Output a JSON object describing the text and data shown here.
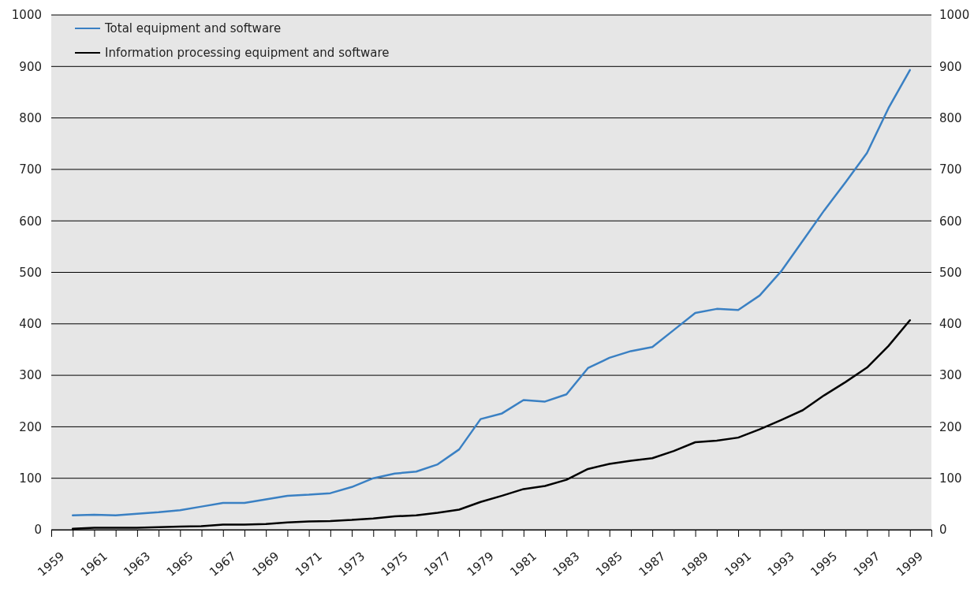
{
  "chart_data": {
    "type": "line",
    "x": [
      1960,
      1961,
      1962,
      1963,
      1964,
      1965,
      1966,
      1967,
      1968,
      1969,
      1970,
      1971,
      1972,
      1973,
      1974,
      1975,
      1976,
      1977,
      1978,
      1979,
      1980,
      1981,
      1982,
      1983,
      1984,
      1985,
      1986,
      1987,
      1988,
      1989,
      1990,
      1991,
      1992,
      1993,
      1994,
      1995,
      1996,
      1997,
      1998,
      1999
    ],
    "series": [
      {
        "name": "Total equipment and software",
        "color": "#3a80c3",
        "values": [
          28,
          29,
          28,
          31,
          34,
          38,
          45,
          52,
          52,
          59,
          66,
          68,
          71,
          83,
          100,
          109,
          113,
          127,
          156,
          215,
          226,
          252,
          249,
          263,
          314,
          334,
          347,
          355,
          388,
          421,
          429,
          427,
          455,
          502,
          561,
          620,
          675,
          732,
          819,
          893
        ]
      },
      {
        "name": "Information processing equipment and software",
        "color": "#000000",
        "values": [
          2,
          4,
          4,
          4,
          5,
          6,
          7,
          10,
          10,
          11,
          14,
          16,
          17,
          19,
          22,
          26,
          28,
          33,
          39,
          54,
          66,
          79,
          85,
          97,
          118,
          128,
          134,
          139,
          153,
          170,
          173,
          179,
          195,
          213,
          232,
          261,
          287,
          315,
          357,
          407
        ]
      }
    ],
    "xlim": [
      1959,
      2000
    ],
    "xticks": [
      1959,
      {
        "value": 1960,
        "label": null
      },
      1961,
      {
        "value": 1962,
        "label": null
      },
      1963,
      {
        "value": 1964,
        "label": null
      },
      1965,
      {
        "value": 1966,
        "label": null
      },
      1967,
      {
        "value": 1968,
        "label": null
      },
      1969,
      {
        "value": 1970,
        "label": null
      },
      1971,
      {
        "value": 1972,
        "label": null
      },
      1973,
      {
        "value": 1974,
        "label": null
      },
      1975,
      {
        "value": 1976,
        "label": null
      },
      1977,
      {
        "value": 1978,
        "label": null
      },
      1979,
      {
        "value": 1980,
        "label": null
      },
      1981,
      {
        "value": 1982,
        "label": null
      },
      1983,
      {
        "value": 1984,
        "label": null
      },
      1985,
      {
        "value": 1986,
        "label": null
      },
      1987,
      {
        "value": 1988,
        "label": null
      },
      1989,
      {
        "value": 1990,
        "label": null
      },
      1991,
      {
        "value": 1992,
        "label": null
      },
      1993,
      {
        "value": 1994,
        "label": null
      },
      1995,
      {
        "value": 1996,
        "label": null
      },
      1997,
      {
        "value": 1998,
        "label": null
      },
      1999,
      {
        "value": 2000,
        "label": null
      }
    ],
    "ylim": [
      0,
      1000
    ],
    "yticks": [
      0,
      100,
      200,
      300,
      400,
      500,
      600,
      700,
      800,
      900,
      1000
    ],
    "y2lim": [
      0,
      1000
    ],
    "y2ticks": [
      0,
      100,
      200,
      300,
      400,
      500,
      600,
      700,
      800,
      900,
      1000
    ],
    "grid": "y",
    "legend": "top left",
    "marker": "none",
    "line_style": "solid"
  }
}
